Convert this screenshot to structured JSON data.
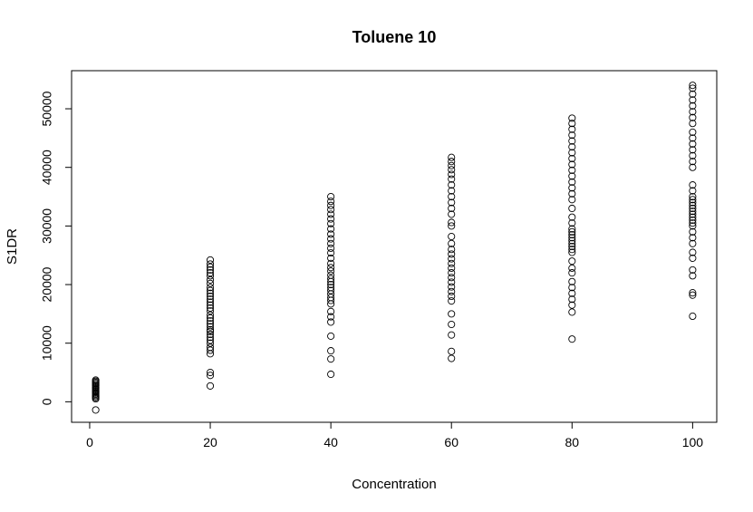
{
  "chart_data": {
    "type": "scatter",
    "title": "Toluene 10",
    "xlabel": "Concentration",
    "ylabel": "S1DR",
    "x_ticks": [
      0,
      20,
      40,
      60,
      80,
      100
    ],
    "y_ticks": [
      0,
      10000,
      20000,
      30000,
      40000,
      50000
    ],
    "xlim": [
      -3,
      104
    ],
    "ylim": [
      -3500,
      56500
    ],
    "grid": false,
    "legend": "none",
    "point_color": "#000000",
    "groups": [
      {
        "x": 1,
        "y": [
          -1400,
          500,
          700,
          900,
          1100,
          1300,
          1500,
          1700,
          1900,
          2100,
          2300,
          2500,
          2700,
          2900,
          3100,
          3300,
          3500,
          3700
        ]
      },
      {
        "x": 20,
        "y": [
          2700,
          4500,
          5000,
          8200,
          8800,
          9300,
          10000,
          10500,
          11000,
          11500,
          12000,
          12300,
          12800,
          13300,
          13800,
          14300,
          14800,
          15500,
          16000,
          16500,
          17000,
          17500,
          18000,
          18500,
          19000,
          19500,
          20200,
          20800,
          21500,
          22000,
          22500,
          23000,
          23500,
          24200
        ]
      },
      {
        "x": 40,
        "y": [
          4700,
          7300,
          8700,
          11200,
          13600,
          14500,
          15400,
          16700,
          17300,
          17800,
          18400,
          19000,
          19500,
          20000,
          20500,
          21000,
          21600,
          22300,
          22900,
          23600,
          24500,
          25400,
          26200,
          27000,
          27800,
          28600,
          29500,
          30400,
          31200,
          32000,
          32800,
          33500,
          34200,
          35000
        ]
      },
      {
        "x": 60,
        "y": [
          7400,
          8600,
          11400,
          13200,
          15000,
          17200,
          18000,
          18800,
          19600,
          20400,
          21200,
          22000,
          22800,
          23600,
          24400,
          25200,
          26000,
          27000,
          28200,
          30000,
          30600,
          32000,
          33000,
          34000,
          35000,
          36000,
          37000,
          38000,
          38800,
          39600,
          40300,
          41000,
          41700
        ]
      },
      {
        "x": 80,
        "y": [
          10700,
          15300,
          16500,
          17500,
          18500,
          19500,
          20500,
          22000,
          22800,
          24000,
          25500,
          26000,
          26500,
          27000,
          27500,
          28000,
          28500,
          29000,
          29500,
          30500,
          31500,
          33000,
          34500,
          35500,
          36500,
          37500,
          38500,
          39500,
          40500,
          41500,
          42500,
          43500,
          44500,
          45500,
          46500,
          47500,
          48400
        ]
      },
      {
        "x": 100,
        "y": [
          14600,
          18200,
          18600,
          21500,
          22500,
          24500,
          25500,
          27000,
          28000,
          29000,
          30000,
          30500,
          31000,
          31500,
          32000,
          32500,
          33000,
          33500,
          34000,
          34500,
          35000,
          36000,
          37000,
          40000,
          41000,
          42000,
          43000,
          44000,
          45000,
          46000,
          47500,
          48500,
          49500,
          50500,
          51500,
          52500,
          53500,
          54000
        ]
      }
    ]
  }
}
